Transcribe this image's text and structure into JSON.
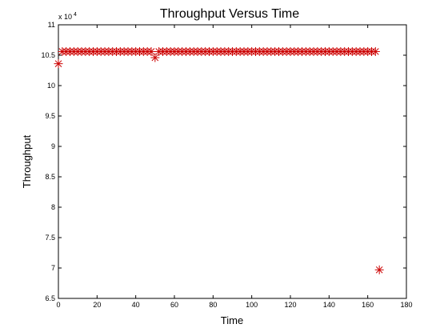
{
  "chart_data": {
    "type": "scatter",
    "title": "Throughput Versus Time",
    "xlabel": "Time",
    "ylabel": "Throughput",
    "y_exponent_base": "x 10",
    "y_exponent_power": "4",
    "xlim": [
      0,
      180
    ],
    "ylim": [
      6.5,
      11
    ],
    "y_scale_factor": 10000,
    "grid": false,
    "legend": "none",
    "marker": "asterisk",
    "marker_color": "#cc0000",
    "x_ticks": [
      0,
      20,
      40,
      60,
      80,
      100,
      120,
      140,
      160,
      180
    ],
    "x_tick_labels": [
      "0",
      "20",
      "40",
      "60",
      "80",
      "100",
      "120",
      "140",
      "160",
      "180"
    ],
    "y_ticks": [
      6.5,
      7,
      7.5,
      8,
      8.5,
      9,
      9.5,
      10,
      10.5,
      11
    ],
    "y_tick_labels": [
      "6.5",
      "7",
      "7.5",
      "8",
      "8.5",
      "9",
      "9.5",
      "10",
      "10.5",
      "11"
    ],
    "series": [
      {
        "x": [
          0,
          2,
          4,
          6,
          8,
          10,
          12,
          14,
          16,
          18,
          20,
          22,
          24,
          26,
          28,
          30,
          32,
          34,
          36,
          38,
          40,
          42,
          44,
          46,
          48,
          50,
          52,
          54,
          56,
          58,
          60,
          62,
          64,
          66,
          68,
          70,
          72,
          74,
          76,
          78,
          80,
          82,
          84,
          86,
          88,
          90,
          92,
          94,
          96,
          98,
          100,
          102,
          104,
          106,
          108,
          110,
          112,
          114,
          116,
          118,
          120,
          122,
          124,
          126,
          128,
          130,
          132,
          134,
          136,
          138,
          140,
          142,
          144,
          146,
          148,
          150,
          152,
          154,
          156,
          158,
          160,
          162,
          164,
          166
        ],
        "y": [
          10.36,
          10.56,
          10.56,
          10.56,
          10.56,
          10.56,
          10.56,
          10.56,
          10.56,
          10.56,
          10.56,
          10.56,
          10.56,
          10.56,
          10.56,
          10.56,
          10.56,
          10.56,
          10.56,
          10.56,
          10.56,
          10.56,
          10.56,
          10.56,
          10.56,
          10.46,
          10.56,
          10.56,
          10.56,
          10.56,
          10.56,
          10.56,
          10.56,
          10.56,
          10.56,
          10.56,
          10.56,
          10.56,
          10.56,
          10.56,
          10.56,
          10.56,
          10.56,
          10.56,
          10.56,
          10.56,
          10.56,
          10.56,
          10.56,
          10.56,
          10.56,
          10.56,
          10.56,
          10.56,
          10.56,
          10.56,
          10.56,
          10.56,
          10.56,
          10.56,
          10.56,
          10.56,
          10.56,
          10.56,
          10.56,
          10.56,
          10.56,
          10.56,
          10.56,
          10.56,
          10.56,
          10.56,
          10.56,
          10.56,
          10.56,
          10.56,
          10.56,
          10.56,
          10.56,
          10.56,
          10.56,
          10.56,
          10.56,
          6.97
        ]
      }
    ]
  }
}
